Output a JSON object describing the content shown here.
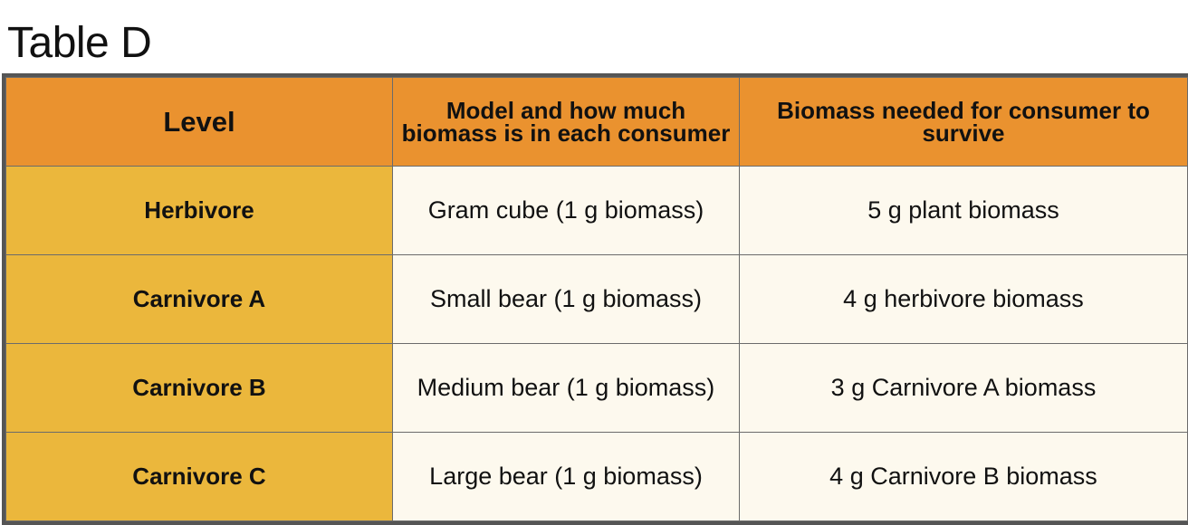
{
  "title": "Table D",
  "table": {
    "headers": [
      "Level",
      "Model and how much biomass is in each consumer",
      "Biomass needed for consumer to survive"
    ],
    "rows": [
      [
        "Herbivore",
        "Gram cube (1 g biomass)",
        "5 g plant biomass"
      ],
      [
        "Carnivore A",
        "Small bear (1 g biomass)",
        "4 g herbivore biomass"
      ],
      [
        "Carnivore B",
        "Medium bear (1 g biomass)",
        "3 g Carnivore A biomass"
      ],
      [
        "Carnivore C",
        "Large bear (1 g biomass)",
        "4 g Carnivore B biomass"
      ]
    ]
  },
  "colors": {
    "header": "#ea922f",
    "level_column": "#ebb73c",
    "value_cells": "#fdf9ee",
    "border": "#555555"
  }
}
